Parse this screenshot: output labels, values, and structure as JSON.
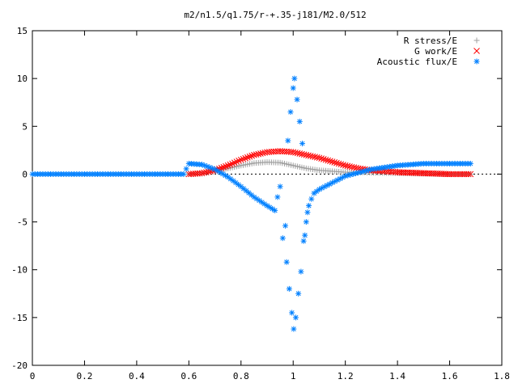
{
  "chart_data": {
    "type": "scatter",
    "title": "m2/n1.5/q1.75/r-+.35-j181/M2.0/512",
    "xlabel": "",
    "ylabel": "",
    "xlim": [
      0,
      1.8
    ],
    "ylim": [
      -20,
      15
    ],
    "x_ticks": [
      "0",
      "0.2",
      "0.4",
      "0.6",
      "0.8",
      "1",
      "1.2",
      "1.4",
      "1.6",
      "1.8"
    ],
    "y_ticks": [
      "15",
      "10",
      "5",
      "0",
      "-5",
      "-10",
      "-15",
      "-20"
    ],
    "grid": false,
    "legend_position": "top-right",
    "series": [
      {
        "name": "R stress/E",
        "marker": "+",
        "color": "#a0a0a0",
        "points": [
          [
            0.6,
            0.0
          ],
          [
            0.65,
            0.05
          ],
          [
            0.7,
            0.3
          ],
          [
            0.75,
            0.6
          ],
          [
            0.8,
            0.9
          ],
          [
            0.85,
            1.15
          ],
          [
            0.9,
            1.25
          ],
          [
            0.95,
            1.2
          ],
          [
            1.0,
            0.9
          ],
          [
            1.05,
            0.6
          ],
          [
            1.1,
            0.4
          ],
          [
            1.15,
            0.3
          ],
          [
            1.2,
            0.2
          ],
          [
            1.25,
            0.2
          ],
          [
            1.3,
            0.15
          ],
          [
            1.4,
            0.1
          ],
          [
            1.5,
            0.05
          ],
          [
            1.6,
            0.0
          ],
          [
            1.68,
            0.0
          ]
        ]
      },
      {
        "name": "G work/E",
        "marker": "x",
        "color": "#ff0000",
        "points": [
          [
            0.6,
            0.0
          ],
          [
            0.65,
            0.1
          ],
          [
            0.7,
            0.4
          ],
          [
            0.75,
            0.9
          ],
          [
            0.8,
            1.5
          ],
          [
            0.85,
            2.0
          ],
          [
            0.9,
            2.3
          ],
          [
            0.95,
            2.4
          ],
          [
            1.0,
            2.3
          ],
          [
            1.05,
            2.0
          ],
          [
            1.1,
            1.7
          ],
          [
            1.15,
            1.3
          ],
          [
            1.2,
            0.9
          ],
          [
            1.25,
            0.6
          ],
          [
            1.3,
            0.4
          ],
          [
            1.4,
            0.2
          ],
          [
            1.5,
            0.1
          ],
          [
            1.6,
            0.0
          ],
          [
            1.68,
            0.0
          ]
        ]
      },
      {
        "name": "Acoustic flux/E",
        "marker": "*",
        "color": "#0080ff",
        "points": [
          [
            0.0,
            0.0
          ],
          [
            0.1,
            0.0
          ],
          [
            0.2,
            0.0
          ],
          [
            0.3,
            0.0
          ],
          [
            0.4,
            0.0
          ],
          [
            0.5,
            0.0
          ],
          [
            0.58,
            0.0
          ],
          [
            0.6,
            1.1
          ],
          [
            0.65,
            1.0
          ],
          [
            0.7,
            0.5
          ],
          [
            0.75,
            -0.3
          ],
          [
            0.8,
            -1.3
          ],
          [
            0.85,
            -2.4
          ],
          [
            0.9,
            -3.3
          ],
          [
            0.93,
            -3.8
          ],
          [
            0.94,
            -2.4
          ],
          [
            0.95,
            -1.3
          ],
          [
            0.96,
            -6.7
          ],
          [
            0.97,
            -5.4
          ],
          [
            0.975,
            -9.2
          ],
          [
            0.98,
            3.5
          ],
          [
            0.985,
            -12.0
          ],
          [
            0.99,
            6.5
          ],
          [
            0.995,
            -14.5
          ],
          [
            1.0,
            9.0
          ],
          [
            1.002,
            -16.2
          ],
          [
            1.005,
            10.0
          ],
          [
            1.01,
            -15.0
          ],
          [
            1.015,
            7.8
          ],
          [
            1.02,
            -12.5
          ],
          [
            1.025,
            5.5
          ],
          [
            1.03,
            -10.2
          ],
          [
            1.035,
            3.2
          ],
          [
            1.04,
            -7.0
          ],
          [
            1.045,
            -6.4
          ],
          [
            1.05,
            -5.0
          ],
          [
            1.055,
            -4.0
          ],
          [
            1.06,
            -3.3
          ],
          [
            1.07,
            -2.6
          ],
          [
            1.08,
            -2.0
          ],
          [
            1.1,
            -1.6
          ],
          [
            1.15,
            -0.9
          ],
          [
            1.2,
            -0.2
          ],
          [
            1.3,
            0.5
          ],
          [
            1.4,
            0.9
          ],
          [
            1.5,
            1.1
          ],
          [
            1.6,
            1.1
          ],
          [
            1.68,
            1.1
          ]
        ]
      }
    ]
  }
}
